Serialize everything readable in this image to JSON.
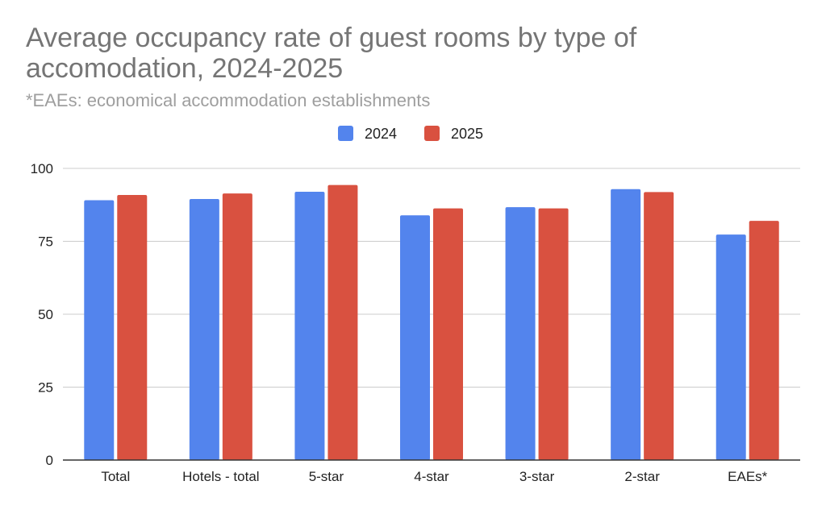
{
  "chart_data": {
    "type": "bar",
    "title": "Average occupancy rate of guest rooms by type of accomodation, 2024-2025",
    "subtitle": "*EAEs: economical accommodation establishments",
    "categories": [
      "Total",
      "Hotels - total",
      "5-star",
      "4-star",
      "3-star",
      "2-star",
      "EAEs*"
    ],
    "series": [
      {
        "name": "2024",
        "color": "#5384ED",
        "values": [
          89.1,
          89.5,
          92.0,
          83.9,
          86.7,
          92.9,
          77.3
        ]
      },
      {
        "name": "2025",
        "color": "#D95140",
        "values": [
          90.9,
          91.4,
          94.3,
          86.3,
          86.3,
          91.9,
          82.0
        ]
      }
    ],
    "yticks": [
      "0",
      "25",
      "50",
      "75",
      "100"
    ],
    "ylim": [
      0,
      100
    ],
    "xlabel": "",
    "ylabel": "",
    "grid": true,
    "legend": "top-center"
  }
}
